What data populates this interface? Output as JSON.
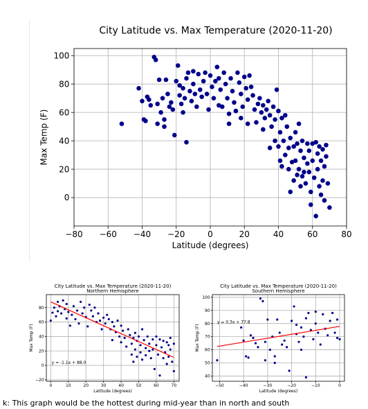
{
  "caption": "k: This graph would be the hottest during mid-year than in north and south",
  "chart_data": [
    {
      "type": "scatter",
      "title": "City Latitude vs. Max Temperature (2020-11-20)",
      "subtitle": "",
      "xlabel": "Latitude (degrees)",
      "ylabel": "Max Temp (F)",
      "xlim": [
        -80,
        80
      ],
      "ylim": [
        -20,
        105
      ],
      "xticks": [
        -80,
        -60,
        -40,
        -20,
        0,
        20,
        40,
        60,
        80
      ],
      "yticks": [
        0,
        20,
        40,
        60,
        80,
        100
      ],
      "grid": true,
      "marker_color": "#00008b",
      "points": [
        [
          -52,
          52
        ],
        [
          -42,
          77
        ],
        [
          -40,
          68
        ],
        [
          -39,
          55
        ],
        [
          -38,
          54
        ],
        [
          -37,
          71
        ],
        [
          -36,
          69
        ],
        [
          -35,
          65
        ],
        [
          -33,
          99
        ],
        [
          -32,
          97
        ],
        [
          -31,
          66
        ],
        [
          -31,
          52
        ],
        [
          -30,
          83
        ],
        [
          -29,
          60
        ],
        [
          -28,
          70
        ],
        [
          -27,
          55
        ],
        [
          -27,
          50
        ],
        [
          -26,
          83
        ],
        [
          -25,
          73
        ],
        [
          -24,
          64
        ],
        [
          -23,
          67
        ],
        [
          -22,
          62
        ],
        [
          -21,
          44
        ],
        [
          -20,
          82
        ],
        [
          -19,
          93
        ],
        [
          -18,
          79
        ],
        [
          -18,
          72
        ],
        [
          -17,
          66
        ],
        [
          -16,
          77
        ],
        [
          -16,
          60
        ],
        [
          -15,
          70
        ],
        [
          -14,
          84
        ],
        [
          -14,
          39
        ],
        [
          -13,
          88
        ],
        [
          -12,
          75
        ],
        [
          -11,
          68
        ],
        [
          -10,
          89
        ],
        [
          -10,
          80
        ],
        [
          -9,
          73
        ],
        [
          -8,
          64
        ],
        [
          -7,
          87
        ],
        [
          -6,
          76
        ],
        [
          -5,
          71
        ],
        [
          -4,
          82
        ],
        [
          -3,
          88
        ],
        [
          -2,
          73
        ],
        [
          -1,
          62
        ],
        [
          0,
          86
        ],
        [
          1,
          78
        ],
        [
          2,
          70
        ],
        [
          3,
          82
        ],
        [
          4,
          92
        ],
        [
          5,
          84
        ],
        [
          5,
          65
        ],
        [
          6,
          76
        ],
        [
          7,
          64
        ],
        [
          8,
          88
        ],
        [
          9,
          80
        ],
        [
          10,
          70
        ],
        [
          11,
          59
        ],
        [
          11,
          52
        ],
        [
          12,
          84
        ],
        [
          13,
          75
        ],
        [
          14,
          67
        ],
        [
          15,
          61
        ],
        [
          16,
          88
        ],
        [
          17,
          81
        ],
        [
          18,
          73
        ],
        [
          18,
          56
        ],
        [
          19,
          64
        ],
        [
          20,
          85
        ],
        [
          21,
          77
        ],
        [
          22,
          69
        ],
        [
          22,
          52
        ],
        [
          23,
          86
        ],
        [
          24,
          78
        ],
        [
          25,
          72
        ],
        [
          26,
          62
        ],
        [
          27,
          53
        ],
        [
          28,
          66
        ],
        [
          29,
          70
        ],
        [
          30,
          60
        ],
        [
          31,
          65
        ],
        [
          31,
          48
        ],
        [
          32,
          56
        ],
        [
          33,
          62
        ],
        [
          34,
          68
        ],
        [
          35,
          58
        ],
        [
          35,
          35
        ],
        [
          36,
          50
        ],
        [
          37,
          64
        ],
        [
          38,
          55
        ],
        [
          38,
          40
        ],
        [
          39,
          76
        ],
        [
          40,
          61
        ],
        [
          40,
          36
        ],
        [
          41,
          46
        ],
        [
          41,
          26
        ],
        [
          42,
          56
        ],
        [
          42,
          22
        ],
        [
          43,
          40
        ],
        [
          44,
          58
        ],
        [
          44,
          30
        ],
        [
          45,
          50
        ],
        [
          46,
          35
        ],
        [
          46,
          20
        ],
        [
          47,
          42
        ],
        [
          47,
          4
        ],
        [
          48,
          25
        ],
        [
          49,
          36
        ],
        [
          49,
          12
        ],
        [
          50,
          46
        ],
        [
          50,
          26
        ],
        [
          51,
          38
        ],
        [
          51,
          16
        ],
        [
          52,
          52
        ],
        [
          52,
          20
        ],
        [
          53,
          33
        ],
        [
          53,
          8
        ],
        [
          54,
          40
        ],
        [
          54,
          15
        ],
        [
          55,
          28
        ],
        [
          55,
          18
        ],
        [
          56,
          10
        ],
        [
          57,
          38
        ],
        [
          57,
          24
        ],
        [
          58,
          33
        ],
        [
          58,
          18
        ],
        [
          59,
          4
        ],
        [
          59,
          -5
        ],
        [
          60,
          38
        ],
        [
          60,
          26
        ],
        [
          61,
          14
        ],
        [
          62,
          -13
        ],
        [
          62,
          39
        ],
        [
          63,
          31
        ],
        [
          63,
          20
        ],
        [
          64,
          36
        ],
        [
          64,
          8
        ],
        [
          65,
          26
        ],
        [
          65,
          2
        ],
        [
          66,
          34
        ],
        [
          66,
          12
        ],
        [
          67,
          22
        ],
        [
          67,
          -2
        ],
        [
          68,
          37
        ],
        [
          68,
          29
        ],
        [
          69,
          10
        ],
        [
          70,
          -7
        ]
      ]
    },
    {
      "type": "scatter",
      "title": "City Latitude vs. Max Temperature (2020-11-20)",
      "subtitle": "Northern Hemisphere",
      "xlabel": "Latitude (degrees)",
      "ylabel": "Max Temp (F)",
      "xlim": [
        -2.5,
        73
      ],
      "ylim": [
        -22,
        98
      ],
      "xticks": [
        0,
        10,
        20,
        30,
        40,
        50,
        60,
        70
      ],
      "yticks": [
        -20,
        0,
        20,
        40,
        60,
        80
      ],
      "grid": true,
      "marker_color": "#00008b",
      "regression": {
        "equation": "y = -1.1x + 88.0",
        "slope": -1.1,
        "intercept": 88.0,
        "color": "#ff0000"
      },
      "points": [
        [
          0,
          62
        ],
        [
          1,
          73
        ],
        [
          2,
          80
        ],
        [
          3,
          68
        ],
        [
          4,
          88
        ],
        [
          4,
          75
        ],
        [
          5,
          82
        ],
        [
          6,
          72
        ],
        [
          7,
          90
        ],
        [
          8,
          78
        ],
        [
          9,
          85
        ],
        [
          9,
          65
        ],
        [
          10,
          74
        ],
        [
          11,
          55
        ],
        [
          12,
          70
        ],
        [
          13,
          82
        ],
        [
          14,
          64
        ],
        [
          15,
          76
        ],
        [
          16,
          58
        ],
        [
          17,
          88
        ],
        [
          18,
          72
        ],
        [
          19,
          80
        ],
        [
          20,
          67
        ],
        [
          21,
          54
        ],
        [
          22,
          84
        ],
        [
          23,
          76
        ],
        [
          24,
          68
        ],
        [
          25,
          80
        ],
        [
          26,
          60
        ],
        [
          27,
          72
        ],
        [
          28,
          62
        ],
        [
          29,
          50
        ],
        [
          30,
          66
        ],
        [
          31,
          58
        ],
        [
          32,
          70
        ],
        [
          33,
          64
        ],
        [
          34,
          50
        ],
        [
          35,
          60
        ],
        [
          35,
          35
        ],
        [
          36,
          54
        ],
        [
          37,
          46
        ],
        [
          38,
          62
        ],
        [
          39,
          40
        ],
        [
          40,
          55
        ],
        [
          40,
          32
        ],
        [
          41,
          48
        ],
        [
          42,
          38
        ],
        [
          43,
          26
        ],
        [
          44,
          50
        ],
        [
          45,
          42
        ],
        [
          46,
          30
        ],
        [
          46,
          15
        ],
        [
          47,
          38
        ],
        [
          47,
          5
        ],
        [
          48,
          45
        ],
        [
          48,
          22
        ],
        [
          49,
          34
        ],
        [
          49,
          12
        ],
        [
          50,
          40
        ],
        [
          51,
          28
        ],
        [
          51,
          18
        ],
        [
          52,
          50
        ],
        [
          52,
          8
        ],
        [
          53,
          35
        ],
        [
          54,
          24
        ],
        [
          54,
          14
        ],
        [
          55,
          40
        ],
        [
          56,
          20
        ],
        [
          56,
          30
        ],
        [
          57,
          10
        ],
        [
          58,
          36
        ],
        [
          58,
          22
        ],
        [
          59,
          -5
        ],
        [
          60,
          40
        ],
        [
          60,
          28
        ],
        [
          61,
          15
        ],
        [
          62,
          -14
        ],
        [
          62,
          36
        ],
        [
          63,
          25
        ],
        [
          64,
          10
        ],
        [
          64,
          34
        ],
        [
          65,
          18
        ],
        [
          66,
          32
        ],
        [
          66,
          2
        ],
        [
          67,
          28
        ],
        [
          67,
          12
        ],
        [
          68,
          38
        ],
        [
          68,
          22
        ],
        [
          69,
          5
        ],
        [
          70,
          30
        ],
        [
          70,
          -8
        ]
      ]
    },
    {
      "type": "scatter",
      "title": "City Latitude vs. Max Temperature (2020-11-20)",
      "subtitle": "Southern Hemisphere",
      "xlabel": "Latitude (degrees)",
      "ylabel": "Max Temp (F)",
      "xlim": [
        -53,
        2
      ],
      "ylim": [
        36,
        102
      ],
      "xticks": [
        -50,
        -40,
        -30,
        -20,
        -10,
        0
      ],
      "yticks": [
        40,
        50,
        60,
        70,
        80,
        90,
        100
      ],
      "grid": true,
      "marker_color": "#00008b",
      "regression": {
        "equation": "y = 0.3x + 77.8",
        "slope": 0.3,
        "intercept": 77.8,
        "color": "#ff0000"
      },
      "points": [
        [
          -51,
          52
        ],
        [
          -41,
          77
        ],
        [
          -40,
          67
        ],
        [
          -39,
          55
        ],
        [
          -38,
          54
        ],
        [
          -37,
          71
        ],
        [
          -36,
          69
        ],
        [
          -35,
          65
        ],
        [
          -34,
          62
        ],
        [
          -33,
          99
        ],
        [
          -32,
          97
        ],
        [
          -31,
          66
        ],
        [
          -31,
          52
        ],
        [
          -30,
          83
        ],
        [
          -29,
          60
        ],
        [
          -28,
          70
        ],
        [
          -27,
          55
        ],
        [
          -27,
          50
        ],
        [
          -26,
          83
        ],
        [
          -25,
          73
        ],
        [
          -24,
          64
        ],
        [
          -23,
          67
        ],
        [
          -22,
          62
        ],
        [
          -21,
          44
        ],
        [
          -20,
          82
        ],
        [
          -19,
          93
        ],
        [
          -18,
          79
        ],
        [
          -18,
          72
        ],
        [
          -17,
          66
        ],
        [
          -16,
          77
        ],
        [
          -16,
          60
        ],
        [
          -15,
          70
        ],
        [
          -14,
          84
        ],
        [
          -14,
          39
        ],
        [
          -13,
          88
        ],
        [
          -12,
          75
        ],
        [
          -11,
          68
        ],
        [
          -10,
          80
        ],
        [
          -10,
          89
        ],
        [
          -9,
          73
        ],
        [
          -8,
          64
        ],
        [
          -7,
          87
        ],
        [
          -6,
          76
        ],
        [
          -5,
          71
        ],
        [
          -4,
          82
        ],
        [
          -3,
          88
        ],
        [
          -2,
          73
        ],
        [
          -1,
          69
        ],
        [
          -1,
          83
        ],
        [
          0,
          68
        ]
      ]
    }
  ]
}
